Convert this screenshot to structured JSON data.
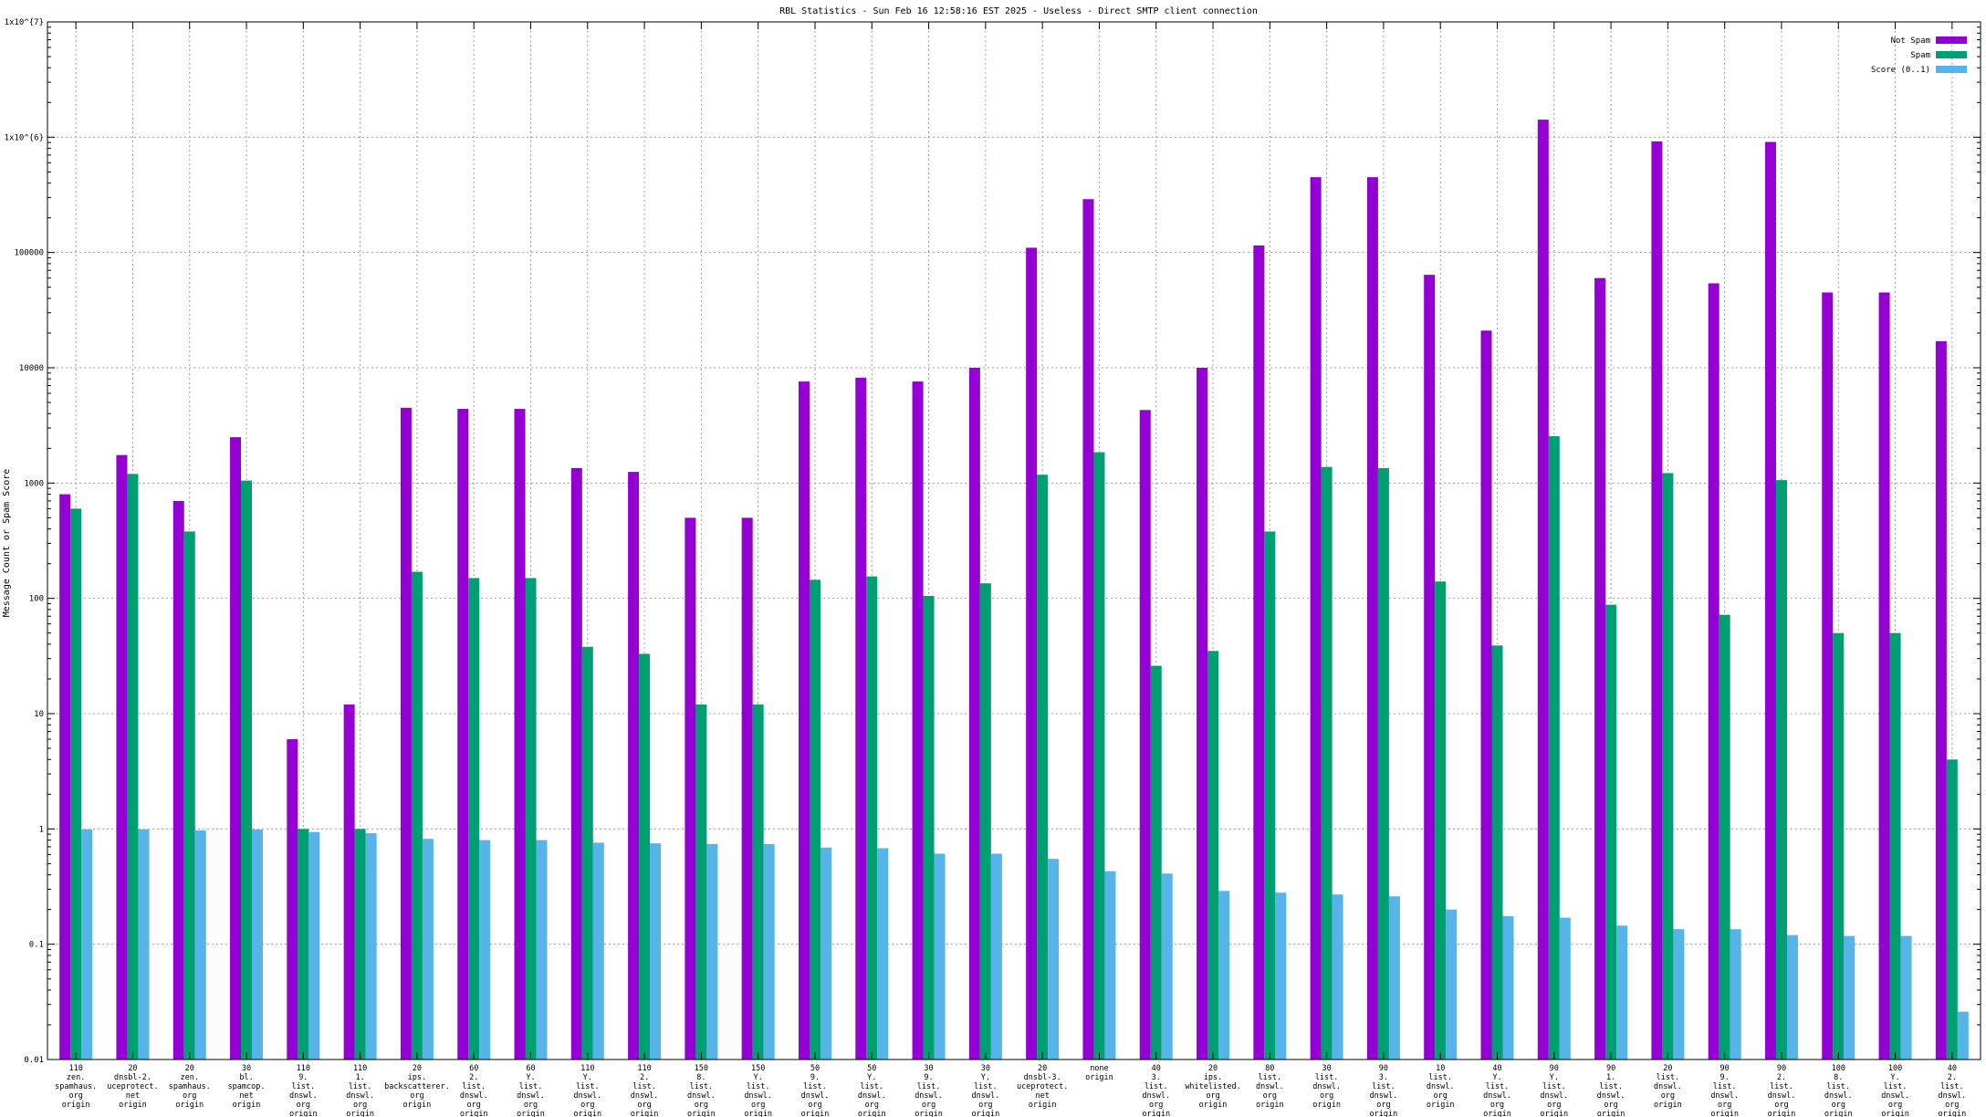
{
  "chart_data": {
    "type": "bar",
    "title": "RBL Statistics - Sun Feb 16 12:58:16 EST 2025 - Useless - Direct SMTP client connection",
    "ylabel": "Message Count or Spam Score",
    "xlabel": "",
    "yscale": "log",
    "ylim": [
      0.01,
      10000000
    ],
    "grid": true,
    "legend_position": "top-right",
    "y_ticks": [
      "0.01",
      "0.1",
      "1",
      "10",
      "100",
      "1000",
      "10000",
      "100000",
      "1x10^{6}",
      "1x10^{7}"
    ],
    "categories": [
      [
        "110",
        "zen.",
        "spamhaus.",
        "org",
        "origin"
      ],
      [
        "20",
        "dnsbl-2.",
        "uceprotect.",
        "net",
        "origin"
      ],
      [
        "20",
        "zen.",
        "spamhaus.",
        "org",
        "origin"
      ],
      [
        "30",
        "bl.",
        "spamcop.",
        "net",
        "origin"
      ],
      [
        "110",
        "9.",
        "list.",
        "dnswl.",
        "org",
        "origin"
      ],
      [
        "110",
        "1.",
        "list.",
        "dnswl.",
        "org",
        "origin"
      ],
      [
        "20",
        "ips.",
        "backscatterer.",
        "org",
        "origin"
      ],
      [
        "60",
        "2.",
        "list.",
        "dnswl.",
        "org",
        "origin"
      ],
      [
        "60",
        "Y.",
        "list.",
        "dnswl.",
        "org",
        "origin"
      ],
      [
        "110",
        "Y.",
        "list.",
        "dnswl.",
        "org",
        "origin"
      ],
      [
        "110",
        "2.",
        "list.",
        "dnswl.",
        "org",
        "origin"
      ],
      [
        "150",
        "8.",
        "list.",
        "dnswl.",
        "org",
        "origin"
      ],
      [
        "150",
        "Y.",
        "list.",
        "dnswl.",
        "org",
        "origin"
      ],
      [
        "50",
        "9.",
        "list.",
        "dnswl.",
        "org",
        "origin"
      ],
      [
        "50",
        "Y.",
        "list.",
        "dnswl.",
        "org",
        "origin"
      ],
      [
        "30",
        "9.",
        "list.",
        "dnswl.",
        "org",
        "origin"
      ],
      [
        "30",
        "Y.",
        "list.",
        "dnswl.",
        "org",
        "origin"
      ],
      [
        "20",
        "dnsbl-3.",
        "uceprotect.",
        "net",
        "origin"
      ],
      [
        "none",
        "origin"
      ],
      [
        "40",
        "3.",
        "list.",
        "dnswl.",
        "org",
        "origin"
      ],
      [
        "20",
        "ips.",
        "whitelisted.",
        "org",
        "origin"
      ],
      [
        "80",
        "list.",
        "dnswl.",
        "org",
        "origin"
      ],
      [
        "30",
        "list.",
        "dnswl.",
        "org",
        "origin"
      ],
      [
        "90",
        "3.",
        "list.",
        "dnswl.",
        "org",
        "origin"
      ],
      [
        "10",
        "list.",
        "dnswl.",
        "org",
        "origin"
      ],
      [
        "40",
        "Y.",
        "list.",
        "dnswl.",
        "org",
        "origin"
      ],
      [
        "90",
        "Y.",
        "list.",
        "dnswl.",
        "org",
        "origin"
      ],
      [
        "90",
        "1.",
        "list.",
        "dnswl.",
        "org",
        "origin"
      ],
      [
        "20",
        "list.",
        "dnswl.",
        "org",
        "origin"
      ],
      [
        "90",
        "9.",
        "list.",
        "dnswl.",
        "org",
        "origin"
      ],
      [
        "90",
        "2.",
        "list.",
        "dnswl.",
        "org",
        "origin"
      ],
      [
        "100",
        "8.",
        "list.",
        "dnswl.",
        "org",
        "origin"
      ],
      [
        "100",
        "Y.",
        "list.",
        "dnswl.",
        "org",
        "origin"
      ],
      [
        "40",
        "2.",
        "list.",
        "dnswl.",
        "org",
        "origin"
      ]
    ],
    "series": [
      {
        "name": "Not Spam",
        "color": "#9400d3",
        "values": [
          800,
          1750,
          700,
          2500,
          6,
          12,
          4500,
          4400,
          4400,
          1350,
          1250,
          500,
          500,
          7600,
          8200,
          7600,
          10000,
          110000,
          290000,
          4300,
          10000,
          115000,
          450000,
          450000,
          64000,
          21000,
          1420000,
          60000,
          920000,
          54000,
          910000,
          45000,
          45000,
          17000
        ]
      },
      {
        "name": "Spam",
        "color": "#009e73",
        "values": [
          600,
          1200,
          380,
          1050,
          1,
          1,
          170,
          150,
          150,
          38,
          33,
          12,
          12,
          145,
          155,
          105,
          135,
          1180,
          1850,
          26,
          35,
          380,
          1380,
          1350,
          140,
          39,
          2550,
          88,
          1220,
          72,
          1060,
          50,
          50,
          4
        ]
      },
      {
        "name": "Score (0..1)",
        "color": "#56b4e9",
        "values": [
          0.99,
          0.99,
          0.97,
          0.99,
          0.94,
          0.92,
          0.82,
          0.8,
          0.8,
          0.76,
          0.75,
          0.74,
          0.74,
          0.69,
          0.68,
          0.61,
          0.61,
          0.55,
          0.43,
          0.41,
          0.29,
          0.28,
          0.27,
          0.26,
          0.2,
          0.175,
          0.17,
          0.145,
          0.135,
          0.135,
          0.12,
          0.118,
          0.118,
          0.026
        ]
      }
    ]
  }
}
